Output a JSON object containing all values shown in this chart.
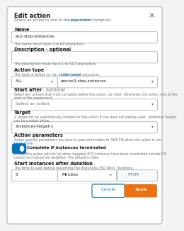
{
  "title": "Edit action",
  "subtitle": "Select an action to add to the experiment template.",
  "subtitle_link": "Learn more",
  "bg_color": "#f2f3f3",
  "dialog_bg": "#ffffff",
  "border_color": "#aab7b8",
  "name_label": "Name",
  "name_value": "ec2-stop-instances",
  "name_hint": "The name must have 1 to 64 characters.",
  "desc_label": "Description - optional",
  "desc_hint": "The description must have 1 to 512 characters.",
  "action_type_label": "Action type",
  "action_type_hint1": "The type of action to run on the target resources.",
  "action_type_link": "Learn more",
  "action_type_filter": "ALL",
  "action_type_value": "aws:ec2:stop-instances",
  "start_after_label": "Start after",
  "start_after_optional": " - optional",
  "start_after_hint": "Select any actions that must complete before this action can start. Otherwise, the action runs at the start of the experiment.",
  "start_after_value": "Select an action",
  "target_label": "Target",
  "target_hint": "A target will be automatically created for this action if one does not already exist. Additional targets can be created below.",
  "target_value": "Instances-Target-1",
  "action_params_label": "Action parameters",
  "action_params_hint": "Action-specific parameters are used to pass information to AWS FIS when the action is run.",
  "action_params_link": "Learn more",
  "toggle_label": "Complete if instances terminated",
  "toggle_hint1": "If true, this action will not fail when targeted EC2 instances have been terminated outside FIS",
  "toggle_hint2": "control and cannot be restarted. The default is false.",
  "duration_label": "Start instances after duration",
  "duration_optional": " - optional",
  "duration_hint": "The time to wait before restarting the instances (ISO 8601 duration).",
  "duration_value": "5",
  "duration_unit": "Minutes",
  "duration_iso": "PT5M",
  "cancel_btn": "Cancel",
  "save_btn": "Save",
  "cancel_border": "#0073bb",
  "cancel_text_color": "#0073bb",
  "save_color": "#ec7211",
  "save_text_color": "#ffffff",
  "label_color": "#16191f",
  "hint_color": "#687078",
  "link_color": "#0073bb",
  "input_border": "#aab7b8",
  "input_bg": "#ffffff",
  "input_filled_bg": "#f8f9fa",
  "toggle_color": "#0073bb",
  "close_color": "#545b64",
  "divider_color": "#e1e4e8",
  "header_bg": "#fafafa"
}
